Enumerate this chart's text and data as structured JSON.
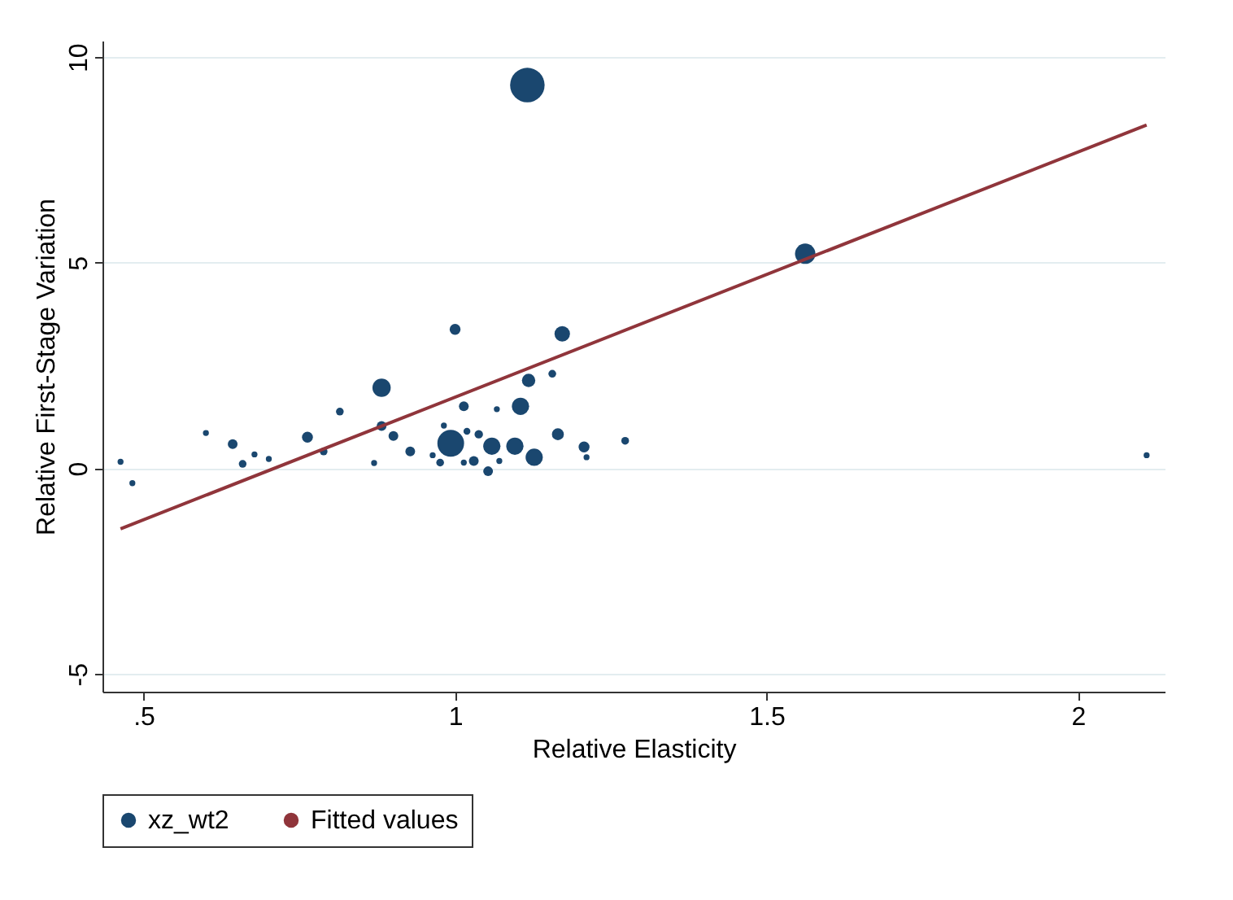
{
  "chart_data": {
    "type": "bubble",
    "xlabel": "Relative Elasticity",
    "ylabel": "Relative First-Stage Variation",
    "xlim": [
      0.434,
      2.139
    ],
    "ylim": [
      -5.43,
      10.4
    ],
    "xticks": [
      {
        "value": 0.5,
        "label": ".5"
      },
      1,
      1.5,
      {
        "value": 2,
        "label": "2"
      }
    ],
    "yticks": [
      -5,
      0,
      5,
      10
    ],
    "grid": "y",
    "legend": "bottom",
    "series": [
      {
        "name": "xz_wt2",
        "marker": "circle",
        "color": "#1a476f",
        "x": [
          1.116,
          1.562,
          1.0,
          1.172,
          0.882,
          1.118,
          1.156,
          0.815,
          1.014,
          1.067,
          1.105,
          0.882,
          0.6,
          0.643,
          0.763,
          0.789,
          0.901,
          0.928,
          0.993,
          0.982,
          1.019,
          1.038,
          1.059,
          1.096,
          1.127,
          1.165,
          1.207,
          1.211,
          1.273,
          1.03,
          0.976,
          1.053,
          1.071,
          0.964,
          1.014,
          0.659,
          0.678,
          0.701,
          0.87,
          0.463,
          0.482,
          2.11
        ],
        "values": [
          9.32,
          5.22,
          3.38,
          3.27,
          1.96,
          2.14,
          2.3,
          1.38,
          1.51,
          1.44,
          1.51,
          1.03,
          0.86,
          0.59,
          0.76,
          0.41,
          0.79,
          0.41,
          0.61,
          1.04,
          0.9,
          0.83,
          0.54,
          0.54,
          0.27,
          0.83,
          0.52,
          0.27,
          0.67,
          0.18,
          0.14,
          -0.07,
          0.18,
          0.32,
          0.14,
          0.11,
          0.34,
          0.23,
          0.13,
          0.16,
          -0.36,
          0.32
        ],
        "sizes": [
          1,
          0.35,
          0.1,
          0.2,
          0.28,
          0.15,
          0.05,
          0.05,
          0.08,
          0.03,
          0.25,
          0.08,
          0.03,
          0.08,
          0.1,
          0.05,
          0.08,
          0.08,
          0.6,
          0.03,
          0.04,
          0.06,
          0.25,
          0.25,
          0.25,
          0.12,
          0.1,
          0.03,
          0.05,
          0.08,
          0.05,
          0.08,
          0.03,
          0.03,
          0.03,
          0.05,
          0.03,
          0.03,
          0.03,
          0.03,
          0.03,
          0.03
        ]
      },
      {
        "name": "Fitted values",
        "type": "line",
        "color": "#90353b",
        "x": [
          0.463,
          2.11
        ],
        "values": [
          -1.47,
          8.35
        ]
      }
    ]
  }
}
